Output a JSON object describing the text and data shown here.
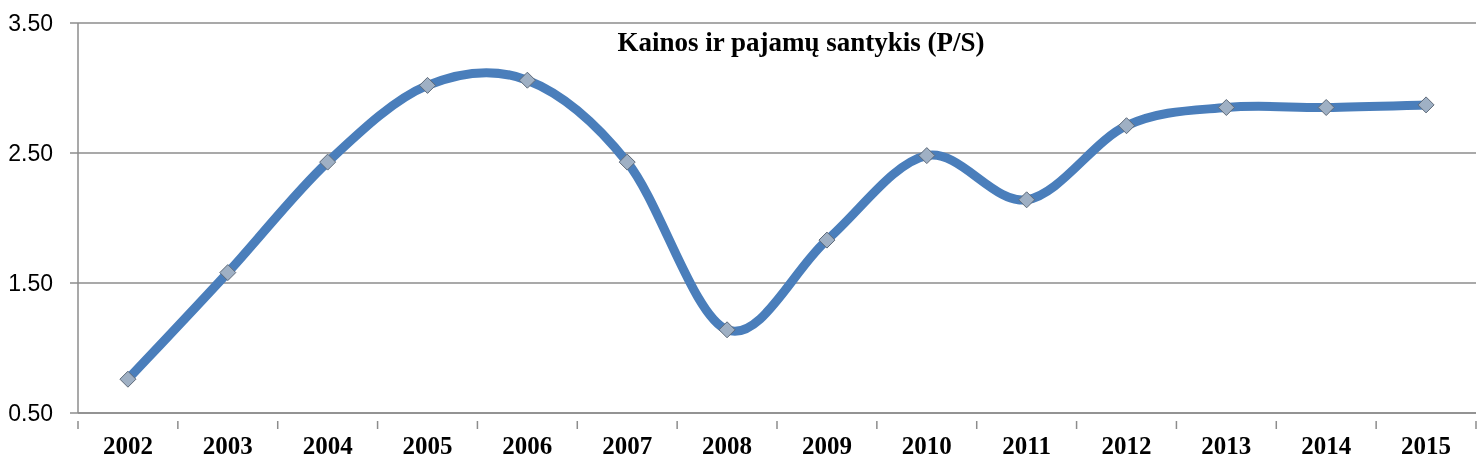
{
  "chart_data": {
    "type": "line",
    "title": "Kainos ir pajamų santykis (P/S)",
    "categories": [
      "2002",
      "2003",
      "2004",
      "2005",
      "2006",
      "2007",
      "2008",
      "2009",
      "2010",
      "2011",
      "2012",
      "2013",
      "2014",
      "2015"
    ],
    "series": [
      {
        "color": "#4a7ebb",
        "values": [
          0.76,
          1.58,
          2.43,
          3.02,
          3.06,
          2.43,
          1.14,
          1.83,
          2.48,
          2.14,
          2.71,
          2.85,
          2.85,
          2.87
        ]
      }
    ],
    "ylim": [
      0.5,
      3.5
    ],
    "yticks": [
      {
        "value": 0.5,
        "label": "0.50"
      },
      {
        "value": 1.5,
        "label": "1.50"
      },
      {
        "value": 2.5,
        "label": "2.50"
      },
      {
        "value": 3.5,
        "label": "3.50"
      }
    ],
    "grid": "y",
    "marker": "diamond",
    "line_style": "solid"
  }
}
